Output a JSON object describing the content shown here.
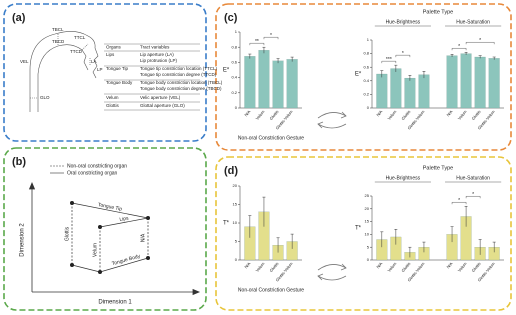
{
  "panel_a": {
    "label": "(a)",
    "diagram_labels": [
      "TBCL",
      "TBCD",
      "TTCL",
      "TTCD",
      "LP",
      "LA",
      "VEL",
      "GLO"
    ],
    "table": {
      "header": [
        "Organs",
        "Tract variables"
      ],
      "rows": [
        {
          "organ": "Lips",
          "variables": [
            "Lip aperture (LA)",
            "Lip protrusion (LP)"
          ]
        },
        {
          "organ": "Tongue Tip",
          "variables": [
            "Tongue tip constriction location (TTCL)",
            "Tongue tip constriction degree (TTCD)"
          ]
        },
        {
          "organ": "Tongue Body",
          "variables": [
            "Tongue body constriction location (TBCL)",
            "Tongue body constriction degree (TBCD)"
          ]
        },
        {
          "organ": "Velum",
          "variables": [
            "Velic aperture (VEL)"
          ]
        },
        {
          "organ": "Glottis",
          "variables": [
            "Glottal aperture (GLO)"
          ]
        }
      ]
    }
  },
  "panel_b": {
    "label": "(b)",
    "legend": [
      "Non-oral constricting organ",
      "Oral constricting organ"
    ],
    "x_label": "Dimension 1",
    "y_label": "Dimension 2",
    "node_labels": [
      "Tongue Tip",
      "Lips",
      "Tongue Body",
      "Glottis",
      "Velum",
      "N/A"
    ]
  },
  "panel_c": {
    "label": "(c)"
  },
  "panel_d": {
    "label": "(d)"
  },
  "chart_data": [
    {
      "type": "bar",
      "xlabel": "Non-oral Constriction Gesture",
      "ylabel": "E*",
      "color": "#8cc5bc",
      "categories": [
        "N/A",
        "Velum",
        "Glottis",
        "Glottis-Velum"
      ],
      "values": [
        0.68,
        0.76,
        0.62,
        0.64
      ],
      "errors": [
        0.03,
        0.04,
        0.03,
        0.03
      ],
      "ylim": [
        0,
        1
      ],
      "yticks": [
        0,
        0.2,
        0.4,
        0.6,
        0.8,
        1
      ],
      "annotations": [
        "**",
        "*"
      ]
    },
    {
      "type": "bar",
      "title": "Palette Type",
      "ylabel": "E*",
      "color": "#8cc5bc",
      "groups": [
        {
          "name": "Hue-Brightness",
          "categories": [
            "N/A",
            "Velum",
            "Glottis",
            "Glottis-Velum"
          ],
          "values": [
            0.5,
            0.58,
            0.44,
            0.49
          ],
          "errors": [
            0.05,
            0.05,
            0.04,
            0.05
          ]
        },
        {
          "name": "Hue-Saturation",
          "categories": [
            "N/A",
            "Velum",
            "Glottis",
            "Glottis-Velum"
          ],
          "values": [
            0.77,
            0.8,
            0.75,
            0.73
          ],
          "errors": [
            0.02,
            0.02,
            0.02,
            0.02
          ]
        }
      ],
      "ylim": [
        0,
        1
      ],
      "yticks": [
        0,
        0.2,
        0.4,
        0.6,
        0.8,
        1
      ],
      "annotations": [
        "***",
        "*",
        "*",
        "*"
      ]
    },
    {
      "type": "bar",
      "xlabel": "Non-oral Constriction Gesture",
      "ylabel": "T*",
      "color": "#e3df8c",
      "categories": [
        "N/A",
        "Velum",
        "Glottis",
        "Glottis-Velum"
      ],
      "values": [
        9,
        13,
        4,
        5
      ],
      "errors": [
        3,
        4,
        2,
        2
      ],
      "ylim": [
        0,
        20
      ],
      "yticks": [
        0,
        5,
        10,
        15,
        20
      ],
      "annotations": []
    },
    {
      "type": "bar",
      "title": "Palette Type",
      "ylabel": "T*",
      "color": "#e3df8c",
      "groups": [
        {
          "name": "Hue-Brightness",
          "categories": [
            "N/A",
            "Velum",
            "Glottis",
            "Glottis-Velum"
          ],
          "values": [
            8,
            9,
            3,
            5
          ],
          "errors": [
            3,
            3,
            2,
            2
          ]
        },
        {
          "name": "Hue-Saturation",
          "categories": [
            "N/A",
            "Velum",
            "Glottis",
            "Glottis-Velum"
          ],
          "values": [
            10,
            17,
            5,
            5
          ],
          "errors": [
            3,
            4,
            3,
            2
          ]
        }
      ],
      "ylim": [
        0,
        25
      ],
      "yticks": [
        0,
        5,
        10,
        15,
        20,
        25
      ],
      "annotations": [
        "*",
        "*"
      ]
    }
  ]
}
